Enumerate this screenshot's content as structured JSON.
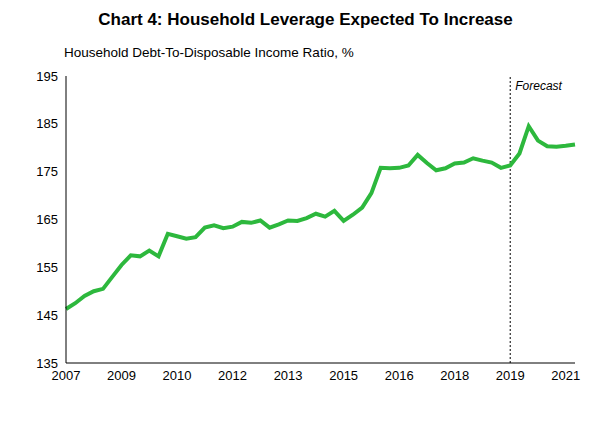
{
  "chart_data": {
    "type": "line",
    "title": "Chart 4: Household Leverage Expected To Increase",
    "y_label": "Household Debt-To-Disposable Income Ratio, %",
    "categories": [
      "2007",
      null,
      null,
      null,
      null,
      null,
      "2009",
      null,
      null,
      null,
      null,
      null,
      "2010",
      null,
      null,
      null,
      null,
      null,
      "2012",
      null,
      null,
      null,
      null,
      null,
      "2013",
      null,
      null,
      null,
      null,
      null,
      "2015",
      null,
      null,
      null,
      null,
      null,
      "2016",
      null,
      null,
      null,
      null,
      null,
      "2018",
      null,
      null,
      null,
      null,
      null,
      "2019",
      null,
      null,
      null,
      null,
      null,
      "2021",
      null
    ],
    "values": [
      146.3,
      147.5,
      149,
      150,
      150.5,
      153,
      155.5,
      157.5,
      157.3,
      158.5,
      157.3,
      162,
      161.5,
      161,
      161.3,
      163.3,
      163.8,
      163.2,
      163.5,
      164.5,
      164.3,
      164.8,
      163.3,
      164,
      164.8,
      164.7,
      165.3,
      166.2,
      165.6,
      166.8,
      164.7,
      166,
      167.5,
      170.5,
      175.8,
      175.7,
      175.8,
      176.3,
      178.5,
      176.8,
      175.3,
      175.7,
      176.7,
      176.9,
      177.8,
      177.3,
      176.9,
      175.8,
      176.3,
      178.8,
      184.5,
      181.5,
      180.3,
      180.2,
      180.4,
      180.7
    ],
    "color": "#2db83d",
    "ylim": [
      135,
      195
    ],
    "yticks": [
      135,
      145,
      155,
      165,
      175,
      185,
      195
    ],
    "grid": false,
    "annotations": [
      {
        "text": "Forecast",
        "x": 48
      }
    ]
  }
}
